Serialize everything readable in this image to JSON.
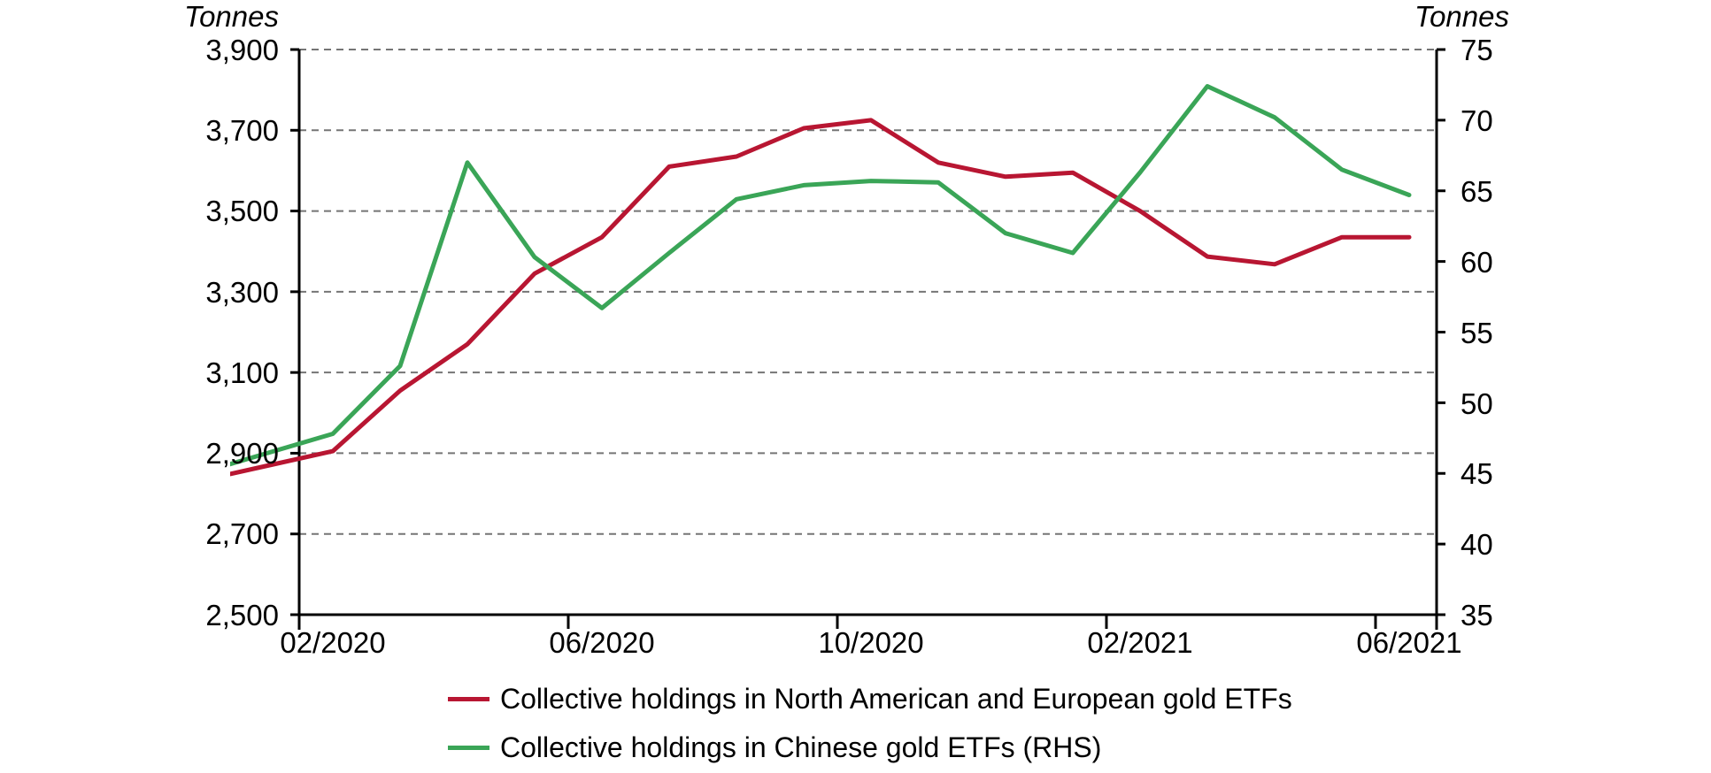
{
  "chart_data": {
    "type": "line",
    "x": [
      "01/2020",
      "02/2020",
      "03/2020",
      "04/2020",
      "05/2020",
      "06/2020",
      "07/2020",
      "08/2020",
      "09/2020",
      "10/2020",
      "11/2020",
      "12/2020",
      "01/2021",
      "02/2021",
      "03/2021",
      "04/2021",
      "05/2021",
      "06/2021"
    ],
    "x_tick_labels": [
      "02/2020",
      "06/2020",
      "10/2020",
      "02/2021",
      "06/2021"
    ],
    "left_axis": {
      "title": "Tonnes",
      "min": 2500,
      "max": 3900,
      "step": 200,
      "tick_labels": [
        "3,900",
        "3,700",
        "3,500",
        "3,300",
        "3,100",
        "2,900",
        "2,700",
        "2,500"
      ]
    },
    "right_axis": {
      "title": "Tonnes",
      "min": 35,
      "max": 75,
      "step": 5,
      "tick_labels": [
        "75",
        "70",
        "65",
        "60",
        "55",
        "50",
        "45",
        "40",
        "35"
      ]
    },
    "series": [
      {
        "name": "Collective holdings in North American and European gold ETFs",
        "axis": "left",
        "color": "#B81632",
        "values": [
          2868,
          2905,
          3055,
          3170,
          3345,
          3435,
          3610,
          3635,
          3705,
          3725,
          3620,
          3585,
          3595,
          3500,
          3387,
          3368,
          3435,
          3435
        ]
      },
      {
        "name": "Collective holdings in Chinese gold ETFs (RHS)",
        "axis": "right",
        "color": "#3AA557",
        "values": [
          46.4,
          47.8,
          52.6,
          67.0,
          60.3,
          56.7,
          60.6,
          64.4,
          65.4,
          65.7,
          65.6,
          62.0,
          60.6,
          66.3,
          72.4,
          70.2,
          66.5,
          64.7
        ]
      }
    ],
    "grid": "dashed horizontal, left-axis intervals",
    "legend_position": "bottom",
    "gridline_color": "#757575",
    "axis_color": "#000000"
  }
}
